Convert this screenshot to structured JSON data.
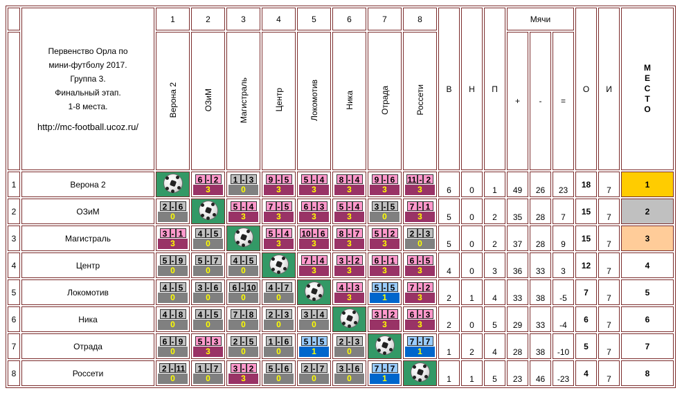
{
  "title": {
    "lines": [
      "Первенство Орла по",
      "мини-футболу 2017.",
      "Группа 3.",
      "Финальный этап.",
      "1-8 места."
    ],
    "url": "http://mc-football.ucoz.ru/"
  },
  "header": {
    "col_numbers": [
      "1",
      "2",
      "3",
      "4",
      "5",
      "6",
      "7",
      "8"
    ],
    "team_cols": [
      "Верона 2",
      "ОЗиМ",
      "Магистраль",
      "Центр",
      "Локомотив",
      "Ника",
      "Отрада",
      "Россети"
    ],
    "balls_label": "Мячи",
    "w": "В",
    "d": "Н",
    "l": "П",
    "plus": "+",
    "minus": "-",
    "diff": "=",
    "o": "О",
    "i": "И",
    "place_letters": [
      "М",
      "Е",
      "С",
      "Т",
      "О"
    ]
  },
  "rows": [
    {
      "num": "1",
      "team": "Верона 2",
      "results": [
        null,
        {
          "s": [
            "6",
            "2"
          ],
          "p": "3",
          "r": "win"
        },
        {
          "s": [
            "1",
            "3"
          ],
          "p": "0",
          "r": "loss"
        },
        {
          "s": [
            "9",
            "5"
          ],
          "p": "3",
          "r": "win"
        },
        {
          "s": [
            "5",
            "4"
          ],
          "p": "3",
          "r": "win"
        },
        {
          "s": [
            "8",
            "4"
          ],
          "p": "3",
          "r": "win"
        },
        {
          "s": [
            "9",
            "6"
          ],
          "p": "3",
          "r": "win"
        },
        {
          "s": [
            "11",
            "2"
          ],
          "p": "3",
          "r": "win"
        }
      ],
      "w": "6",
      "d": "0",
      "l": "1",
      "plus": "49",
      "minus": "26",
      "diff": "23",
      "o": "18",
      "i": "7",
      "place": "1",
      "medal": "gold"
    },
    {
      "num": "2",
      "team": "ОЗиМ",
      "results": [
        {
          "s": [
            "2",
            "6"
          ],
          "p": "0",
          "r": "loss"
        },
        null,
        {
          "s": [
            "5",
            "4"
          ],
          "p": "3",
          "r": "win"
        },
        {
          "s": [
            "7",
            "5"
          ],
          "p": "3",
          "r": "win"
        },
        {
          "s": [
            "6",
            "3"
          ],
          "p": "3",
          "r": "win"
        },
        {
          "s": [
            "5",
            "4"
          ],
          "p": "3",
          "r": "win"
        },
        {
          "s": [
            "3",
            "5"
          ],
          "p": "0",
          "r": "loss"
        },
        {
          "s": [
            "7",
            "1"
          ],
          "p": "3",
          "r": "win"
        }
      ],
      "w": "5",
      "d": "0",
      "l": "2",
      "plus": "35",
      "minus": "28",
      "diff": "7",
      "o": "15",
      "i": "7",
      "place": "2",
      "medal": "silver"
    },
    {
      "num": "3",
      "team": "Магистраль",
      "results": [
        {
          "s": [
            "3",
            "1"
          ],
          "p": "3",
          "r": "win"
        },
        {
          "s": [
            "4",
            "5"
          ],
          "p": "0",
          "r": "loss"
        },
        null,
        {
          "s": [
            "5",
            "4"
          ],
          "p": "3",
          "r": "win"
        },
        {
          "s": [
            "10",
            "6"
          ],
          "p": "3",
          "r": "win"
        },
        {
          "s": [
            "8",
            "7"
          ],
          "p": "3",
          "r": "win"
        },
        {
          "s": [
            "5",
            "2"
          ],
          "p": "3",
          "r": "win"
        },
        {
          "s": [
            "2",
            "3"
          ],
          "p": "0",
          "r": "loss"
        }
      ],
      "w": "5",
      "d": "0",
      "l": "2",
      "plus": "37",
      "minus": "28",
      "diff": "9",
      "o": "15",
      "i": "7",
      "place": "3",
      "medal": "bronze"
    },
    {
      "num": "4",
      "team": "Центр",
      "results": [
        {
          "s": [
            "5",
            "9"
          ],
          "p": "0",
          "r": "loss"
        },
        {
          "s": [
            "5",
            "7"
          ],
          "p": "0",
          "r": "loss"
        },
        {
          "s": [
            "4",
            "5"
          ],
          "p": "0",
          "r": "loss"
        },
        null,
        {
          "s": [
            "7",
            "4"
          ],
          "p": "3",
          "r": "win"
        },
        {
          "s": [
            "3",
            "2"
          ],
          "p": "3",
          "r": "win"
        },
        {
          "s": [
            "6",
            "1"
          ],
          "p": "3",
          "r": "win"
        },
        {
          "s": [
            "6",
            "5"
          ],
          "p": "3",
          "r": "win"
        }
      ],
      "w": "4",
      "d": "0",
      "l": "3",
      "plus": "36",
      "minus": "33",
      "diff": "3",
      "o": "12",
      "i": "7",
      "place": "4",
      "medal": ""
    },
    {
      "num": "5",
      "team": "Локомотив",
      "results": [
        {
          "s": [
            "4",
            "5"
          ],
          "p": "0",
          "r": "loss"
        },
        {
          "s": [
            "3",
            "6"
          ],
          "p": "0",
          "r": "loss"
        },
        {
          "s": [
            "6",
            "10"
          ],
          "p": "0",
          "r": "loss"
        },
        {
          "s": [
            "4",
            "7"
          ],
          "p": "0",
          "r": "loss"
        },
        null,
        {
          "s": [
            "4",
            "3"
          ],
          "p": "3",
          "r": "win"
        },
        {
          "s": [
            "5",
            "5"
          ],
          "p": "1",
          "r": "draw"
        },
        {
          "s": [
            "7",
            "2"
          ],
          "p": "3",
          "r": "win"
        }
      ],
      "w": "2",
      "d": "1",
      "l": "4",
      "plus": "33",
      "minus": "38",
      "diff": "-5",
      "o": "7",
      "i": "7",
      "place": "5",
      "medal": ""
    },
    {
      "num": "6",
      "team": "Ника",
      "results": [
        {
          "s": [
            "4",
            "8"
          ],
          "p": "0",
          "r": "loss"
        },
        {
          "s": [
            "4",
            "5"
          ],
          "p": "0",
          "r": "loss"
        },
        {
          "s": [
            "7",
            "8"
          ],
          "p": "0",
          "r": "loss"
        },
        {
          "s": [
            "2",
            "3"
          ],
          "p": "0",
          "r": "loss"
        },
        {
          "s": [
            "3",
            "4"
          ],
          "p": "0",
          "r": "loss"
        },
        null,
        {
          "s": [
            "3",
            "2"
          ],
          "p": "3",
          "r": "win"
        },
        {
          "s": [
            "6",
            "3"
          ],
          "p": "3",
          "r": "win"
        }
      ],
      "w": "2",
      "d": "0",
      "l": "5",
      "plus": "29",
      "minus": "33",
      "diff": "-4",
      "o": "6",
      "i": "7",
      "place": "6",
      "medal": ""
    },
    {
      "num": "7",
      "team": "Отрада",
      "results": [
        {
          "s": [
            "6",
            "9"
          ],
          "p": "0",
          "r": "loss"
        },
        {
          "s": [
            "5",
            "3"
          ],
          "p": "3",
          "r": "win"
        },
        {
          "s": [
            "2",
            "5"
          ],
          "p": "0",
          "r": "loss"
        },
        {
          "s": [
            "1",
            "6"
          ],
          "p": "0",
          "r": "loss"
        },
        {
          "s": [
            "5",
            "5"
          ],
          "p": "1",
          "r": "draw"
        },
        {
          "s": [
            "2",
            "3"
          ],
          "p": "0",
          "r": "loss"
        },
        null,
        {
          "s": [
            "7",
            "7"
          ],
          "p": "1",
          "r": "draw"
        }
      ],
      "w": "1",
      "d": "2",
      "l": "4",
      "plus": "28",
      "minus": "38",
      "diff": "-10",
      "o": "5",
      "i": "7",
      "place": "7",
      "medal": ""
    },
    {
      "num": "8",
      "team": "Россети",
      "results": [
        {
          "s": [
            "2",
            "11"
          ],
          "p": "0",
          "r": "loss"
        },
        {
          "s": [
            "1",
            "7"
          ],
          "p": "0",
          "r": "loss"
        },
        {
          "s": [
            "3",
            "2"
          ],
          "p": "3",
          "r": "win"
        },
        {
          "s": [
            "5",
            "6"
          ],
          "p": "0",
          "r": "loss"
        },
        {
          "s": [
            "2",
            "7"
          ],
          "p": "0",
          "r": "loss"
        },
        {
          "s": [
            "3",
            "6"
          ],
          "p": "0",
          "r": "loss"
        },
        {
          "s": [
            "7",
            "7"
          ],
          "p": "1",
          "r": "draw"
        },
        null
      ],
      "w": "1",
      "d": "1",
      "l": "5",
      "plus": "23",
      "minus": "46",
      "diff": "-23",
      "o": "4",
      "i": "7",
      "place": "8",
      "medal": ""
    }
  ],
  "colors": {
    "win": "#ff99cc",
    "loss": "#c0c0c0",
    "draw": "#99ccff",
    "gold": "#ffcc00",
    "silver": "#c0c0c0",
    "bronze": "#ffcc99",
    "border": "#7a2a2a"
  }
}
